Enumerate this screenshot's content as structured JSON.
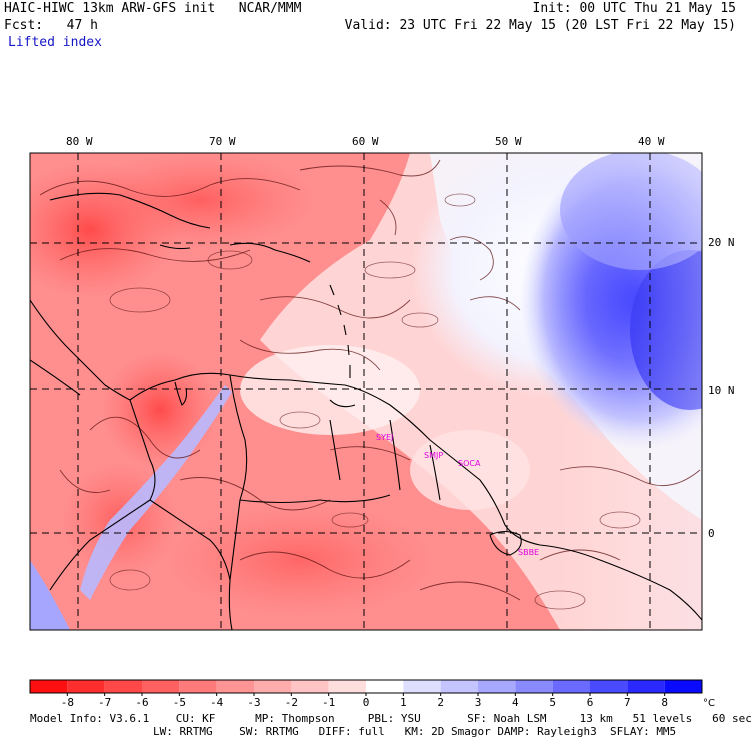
{
  "header": {
    "model_title": "HAIC-HIWC 13km ARW-GFS init   NCAR/MMM",
    "init": "Init: 00 UTC Thu 21 May 15",
    "forecast": "Fcst:   47 h",
    "valid": "Valid: 23 UTC Fri 22 May 15 (20 LST Fri 22 May 15)",
    "field": "Lifted index"
  },
  "longitude_labels": [
    "80 W",
    "70 W",
    "60 W",
    "50 W",
    "40 W"
  ],
  "latitude_labels": [
    "20 N",
    "10 N",
    "0"
  ],
  "stations": [
    "SYEJ",
    "SMJP",
    "SOCA",
    "SBBE"
  ],
  "colorbar": {
    "tick_labels": [
      "-8",
      "-7",
      "-6",
      "-5",
      "-4",
      "-3",
      "-2",
      "-1",
      "0",
      "1",
      "2",
      "3",
      "4",
      "5",
      "6",
      "7",
      "8"
    ],
    "unit": "°C",
    "colors": [
      "#ff1010",
      "#ff2e2e",
      "#ff4848",
      "#ff6060",
      "#ff7a7a",
      "#ff9494",
      "#ffacac",
      "#ffc4c4",
      "#ffdede",
      "#ffffff",
      "#dedeff",
      "#c4c4ff",
      "#a8a8ff",
      "#8a8aff",
      "#6a6aff",
      "#4a4aff",
      "#2a2aff",
      "#0a0aff"
    ]
  },
  "footer": {
    "line1": "Model Info: V3.6.1    CU: KF      MP: Thompson     PBL: YSU       SF: Noah LSM     13 km   51 levels   60 sec",
    "line2": "LW: RRTMG    SW: RRTMG   DIFF: full   KM: 2D Smagor DAMP: Rayleigh3  SFLAY: MM5"
  }
}
